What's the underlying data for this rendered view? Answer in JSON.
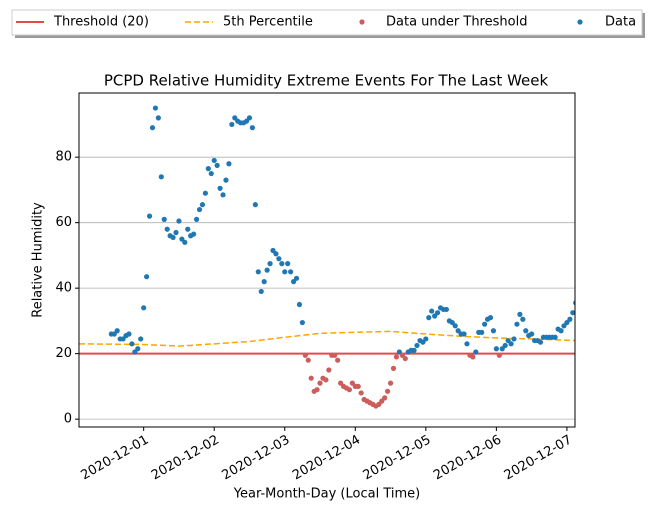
{
  "chart_data": {
    "type": "scatter",
    "title": "PCPD Relative Humidity Extreme Events For The Last Week",
    "xlabel": "Year-Month-Day (Local Time)",
    "ylabel": "Relative Humidity",
    "xlim": [
      "2020-11-30 02:00",
      "2020-12-07 02:45"
    ],
    "xticks": [
      "2020-12-01",
      "2020-12-02",
      "2020-12-03",
      "2020-12-04",
      "2020-12-05",
      "2020-12-06",
      "2020-12-07"
    ],
    "ylim": [
      -2.4,
      99.6
    ],
    "yticks": [
      0,
      20,
      40,
      60,
      80
    ],
    "grid": "y",
    "legend": "top",
    "series": [
      {
        "name": "Threshold (20)",
        "color": "#e8484a",
        "style": "solid",
        "x": [
          "2020-11-30 02:00",
          "2020-12-07 02:45"
        ],
        "values": [
          20,
          20
        ]
      },
      {
        "name": "5th Percentile",
        "color": "#ffa500",
        "style": "dashed",
        "x": [
          "2020-11-30 02:00",
          "2020-12-01 00:00",
          "2020-12-01 12:00",
          "2020-12-02 00:00",
          "2020-12-02 12:00",
          "2020-12-03 00:00",
          "2020-12-03 12:00",
          "2020-12-04 00:00",
          "2020-12-04 12:00",
          "2020-12-05 00:00",
          "2020-12-05 12:00",
          "2020-12-06 00:00",
          "2020-12-06 12:00",
          "2020-12-07 02:45"
        ],
        "values": [
          23,
          22.8,
          22.3,
          23,
          23.7,
          25,
          26.2,
          26.5,
          26.8,
          26,
          25.3,
          24.8,
          24.5,
          24
        ]
      },
      {
        "name": "Data under Threshold",
        "color": "#cd5c5c",
        "style": "dot",
        "x": [
          "2020-12-03 07:00",
          "2020-12-03 08:00",
          "2020-12-03 09:00",
          "2020-12-03 10:00",
          "2020-12-03 11:00",
          "2020-12-03 12:00",
          "2020-12-03 13:00",
          "2020-12-03 14:00",
          "2020-12-03 15:00",
          "2020-12-03 16:00",
          "2020-12-03 17:00",
          "2020-12-03 18:00",
          "2020-12-03 19:00",
          "2020-12-03 20:00",
          "2020-12-03 21:00",
          "2020-12-03 22:00",
          "2020-12-03 23:00",
          "2020-12-04 00:00",
          "2020-12-04 01:00",
          "2020-12-04 02:00",
          "2020-12-04 03:00",
          "2020-12-04 04:00",
          "2020-12-04 05:00",
          "2020-12-04 06:00",
          "2020-12-04 07:00",
          "2020-12-04 08:00",
          "2020-12-04 09:00",
          "2020-12-04 10:00",
          "2020-12-04 11:00",
          "2020-12-04 12:00",
          "2020-12-04 13:00",
          "2020-12-04 14:00",
          "2020-12-04 16:00",
          "2020-12-04 17:00",
          "2020-12-05 15:00",
          "2020-12-05 16:00",
          "2020-12-06 01:00"
        ],
        "values": [
          19.5,
          18,
          12.5,
          8.5,
          9,
          11,
          12.5,
          12,
          15,
          19.5,
          19.5,
          18,
          11,
          10,
          9.5,
          9,
          11,
          10,
          10,
          8,
          6,
          5.5,
          5,
          4.5,
          4,
          4.5,
          5.5,
          6.5,
          8.5,
          11,
          15.5,
          19,
          19.5,
          18.5,
          19.5,
          19,
          19.5
        ]
      },
      {
        "name": "Data",
        "color": "#1f77b4",
        "style": "dot",
        "x": [
          "2020-11-30 13:00",
          "2020-11-30 14:00",
          "2020-11-30 15:00",
          "2020-11-30 16:00",
          "2020-11-30 17:00",
          "2020-11-30 18:00",
          "2020-11-30 19:00",
          "2020-11-30 20:00",
          "2020-11-30 21:00",
          "2020-11-30 22:00",
          "2020-11-30 23:00",
          "2020-12-01 00:00",
          "2020-12-01 01:00",
          "2020-12-01 02:00",
          "2020-12-01 03:00",
          "2020-12-01 04:00",
          "2020-12-01 05:00",
          "2020-12-01 06:00",
          "2020-12-01 07:00",
          "2020-12-01 08:00",
          "2020-12-01 09:00",
          "2020-12-01 10:00",
          "2020-12-01 11:00",
          "2020-12-01 12:00",
          "2020-12-01 13:00",
          "2020-12-01 14:00",
          "2020-12-01 15:00",
          "2020-12-01 16:00",
          "2020-12-01 17:00",
          "2020-12-01 18:00",
          "2020-12-01 19:00",
          "2020-12-01 20:00",
          "2020-12-01 21:00",
          "2020-12-01 22:00",
          "2020-12-01 23:00",
          "2020-12-02 00:00",
          "2020-12-02 01:00",
          "2020-12-02 02:00",
          "2020-12-02 03:00",
          "2020-12-02 04:00",
          "2020-12-02 05:00",
          "2020-12-02 06:00",
          "2020-12-02 07:00",
          "2020-12-02 08:00",
          "2020-12-02 09:00",
          "2020-12-02 10:00",
          "2020-12-02 11:00",
          "2020-12-02 12:00",
          "2020-12-02 13:00",
          "2020-12-02 14:00",
          "2020-12-02 15:00",
          "2020-12-02 16:00",
          "2020-12-02 17:00",
          "2020-12-02 18:00",
          "2020-12-02 19:00",
          "2020-12-02 20:00",
          "2020-12-02 21:00",
          "2020-12-02 22:00",
          "2020-12-02 23:00",
          "2020-12-03 00:00",
          "2020-12-03 01:00",
          "2020-12-03 02:00",
          "2020-12-03 03:00",
          "2020-12-03 04:00",
          "2020-12-03 05:00",
          "2020-12-03 06:00",
          "2020-12-04 15:00",
          "2020-12-04 18:00",
          "2020-12-04 19:00",
          "2020-12-04 20:00",
          "2020-12-04 21:00",
          "2020-12-04 22:00",
          "2020-12-04 23:00",
          "2020-12-05 00:00",
          "2020-12-05 01:00",
          "2020-12-05 02:00",
          "2020-12-05 03:00",
          "2020-12-05 04:00",
          "2020-12-05 05:00",
          "2020-12-05 06:00",
          "2020-12-05 07:00",
          "2020-12-05 08:00",
          "2020-12-05 09:00",
          "2020-12-05 10:00",
          "2020-12-05 11:00",
          "2020-12-05 12:00",
          "2020-12-05 13:00",
          "2020-12-05 14:00",
          "2020-12-05 17:00",
          "2020-12-05 18:00",
          "2020-12-05 19:00",
          "2020-12-05 20:00",
          "2020-12-05 21:00",
          "2020-12-05 22:00",
          "2020-12-05 23:00",
          "2020-12-06 00:00",
          "2020-12-06 02:00",
          "2020-12-06 03:00",
          "2020-12-06 04:00",
          "2020-12-06 05:00",
          "2020-12-06 06:00",
          "2020-12-06 07:00",
          "2020-12-06 08:00",
          "2020-12-06 09:00",
          "2020-12-06 10:00",
          "2020-12-06 11:00",
          "2020-12-06 12:00",
          "2020-12-06 13:00",
          "2020-12-06 14:00",
          "2020-12-06 15:00",
          "2020-12-06 16:00",
          "2020-12-06 17:00",
          "2020-12-06 18:00",
          "2020-12-06 19:00",
          "2020-12-06 20:00",
          "2020-12-06 21:00",
          "2020-12-06 22:00",
          "2020-12-06 23:00",
          "2020-12-07 00:00",
          "2020-12-07 01:00",
          "2020-12-07 02:00",
          "2020-12-07 03:00"
        ],
        "values": [
          26,
          26,
          27,
          24.5,
          24.5,
          25.5,
          26,
          23,
          20.5,
          21.5,
          24.5,
          34,
          43.5,
          62,
          89,
          95,
          92,
          74,
          61,
          58,
          56,
          55.5,
          57,
          60.5,
          55,
          54,
          58,
          56,
          56.5,
          61,
          64,
          65.5,
          69,
          76.5,
          75,
          79,
          77.5,
          70.5,
          68.5,
          73,
          78,
          90,
          92,
          91,
          90.5,
          90.5,
          91,
          92,
          89,
          65.5,
          45,
          39,
          42,
          45.5,
          47.5,
          51.5,
          50.5,
          49,
          47.5,
          45,
          47.5,
          45,
          42,
          43,
          35,
          29.5,
          20.5,
          20.5,
          21,
          21,
          22.5,
          24,
          23.5,
          24.5,
          31,
          33,
          31.5,
          32.5,
          34,
          33.5,
          33.5,
          30,
          29.5,
          28.5,
          27,
          26,
          26,
          23,
          20.5,
          26.5,
          26.5,
          29,
          30.5,
          31,
          27,
          21.5,
          21.5,
          22.5,
          24,
          23,
          24.5,
          29,
          32,
          30.5,
          27,
          25.5,
          26,
          24,
          24,
          23.5,
          25,
          25,
          25,
          25,
          25,
          27.5,
          27,
          28.5,
          29.5,
          30.5,
          32.5,
          35.5
        ]
      }
    ]
  }
}
